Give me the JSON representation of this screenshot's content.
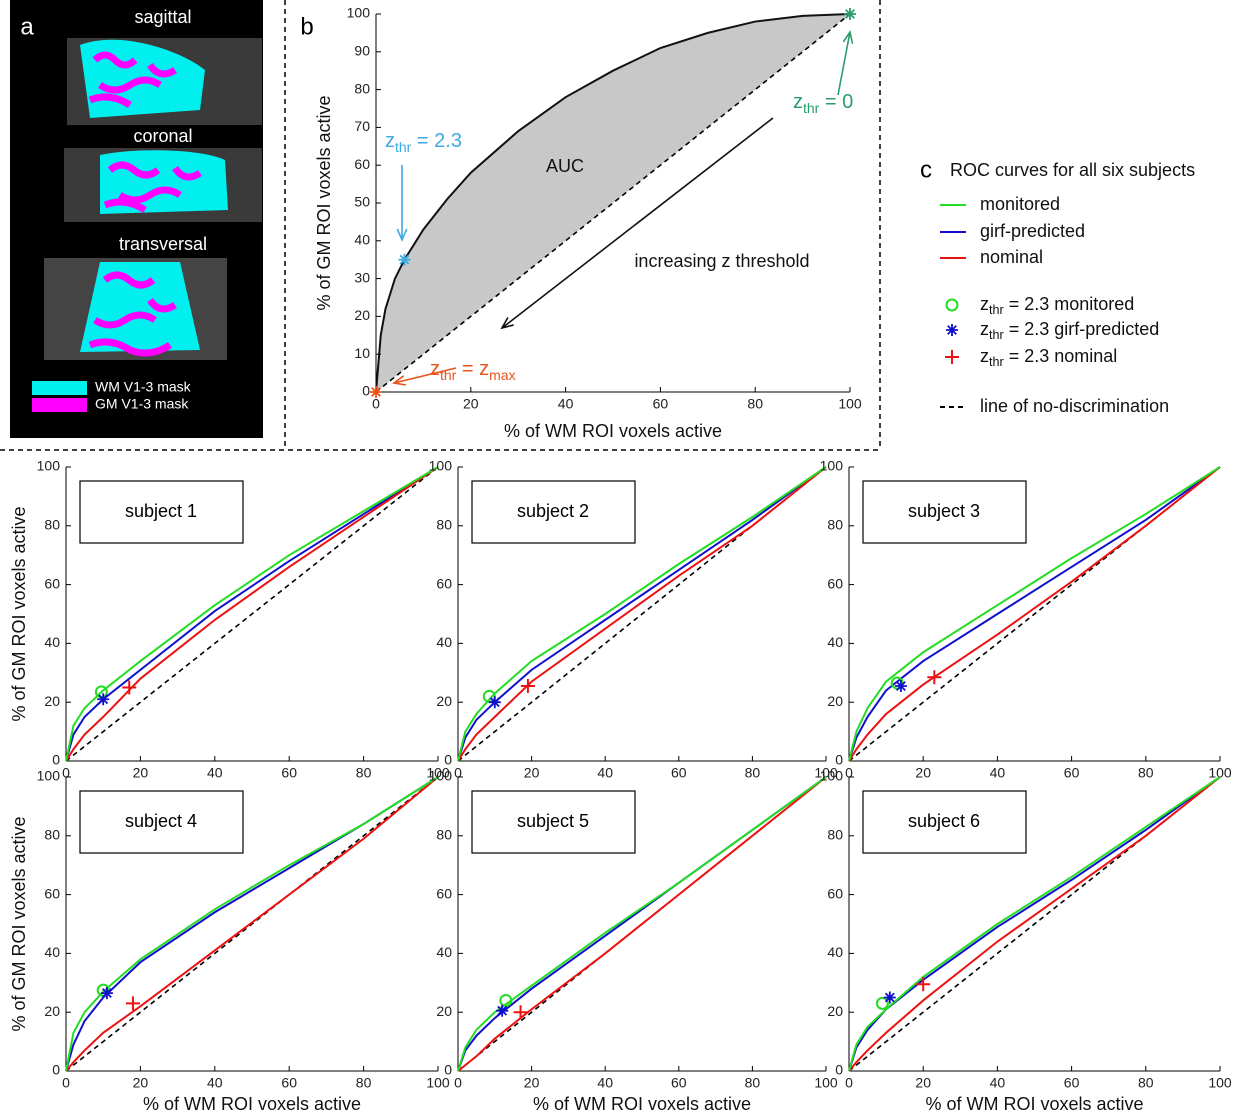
{
  "panel_a": {
    "label": "a",
    "views": [
      "sagittal",
      "coronal",
      "transversal"
    ],
    "legend": [
      {
        "name": "WM V1-3 mask",
        "color": "#00f0f0"
      },
      {
        "name": "GM V1-3 mask",
        "color": "#ff00ff"
      }
    ]
  },
  "panel_c": {
    "label": "c",
    "title": "ROC curves for all six subjects",
    "entries": [
      {
        "name": "monitored",
        "color": "#22dd22"
      },
      {
        "name": "girf-predicted",
        "color": "#1010cc"
      },
      {
        "name": "nominal",
        "color": "#ee1111"
      },
      {
        "parts": [
          "z",
          "thr",
          " = 2.3 monitored"
        ],
        "color": "#22dd22",
        "marker": "circle"
      },
      {
        "parts": [
          "z",
          "thr",
          " = 2.3 girf-predicted"
        ],
        "color": "#1010cc",
        "marker": "asterisk"
      },
      {
        "parts": [
          "z",
          "thr",
          " = 2.3 nominal"
        ],
        "color": "#ee1111",
        "marker": "plus"
      },
      {
        "name": "line of no-discrimination",
        "color": "#000000",
        "dash": true
      }
    ]
  },
  "chart_data": [
    {
      "type": "line",
      "label": "b",
      "xlabel": "% of WM ROI voxels active",
      "ylabel": "% of GM ROI voxels active",
      "xlim": [
        0,
        100
      ],
      "ylim": [
        0,
        100
      ],
      "xticks": [
        0,
        20,
        40,
        60,
        80,
        100
      ],
      "yticks": [
        0,
        10,
        20,
        30,
        40,
        50,
        60,
        70,
        80,
        90,
        100
      ],
      "area_color": "#c8c8c8",
      "x": [
        0,
        1,
        2,
        4,
        6,
        10,
        15,
        20,
        30,
        40,
        50,
        60,
        70,
        80,
        90,
        100
      ],
      "series": [
        {
          "color": "#111111",
          "values": [
            0,
            15,
            22,
            30,
            35,
            43,
            51,
            58,
            69,
            78,
            85,
            91,
            95,
            98,
            99.5,
            100
          ]
        }
      ],
      "points": [
        {
          "x": 6,
          "y": 35,
          "color": "#3fa9e0",
          "marker": "asterisk"
        },
        {
          "x": 100,
          "y": 100,
          "color": "#2a9d6a",
          "marker": "asterisk"
        },
        {
          "x": 0,
          "y": 0,
          "color": "#e8541c",
          "marker": "asterisk"
        }
      ],
      "annotations": [
        {
          "text": "AUC"
        },
        {
          "text": "increasing z threshold"
        },
        {
          "parts": [
            "z",
            "thr",
            " = 2.3"
          ],
          "color": "#3fa9e0"
        },
        {
          "parts": [
            "z",
            "thr",
            " = 0"
          ],
          "color": "#2a9d6a"
        },
        {
          "parts": [
            "z",
            "thr",
            " = z",
            "max"
          ],
          "color": "#e8541c"
        }
      ]
    },
    {
      "type": "line",
      "title": "subject 1",
      "ylabel": "% of GM ROI voxels active",
      "xlim": [
        0,
        100
      ],
      "ylim": [
        0,
        100
      ],
      "xticks": [
        0,
        20,
        40,
        60,
        80,
        100
      ],
      "yticks": [
        0,
        20,
        40,
        60,
        80,
        100
      ],
      "x": [
        0,
        2,
        5,
        10,
        20,
        40,
        60,
        80,
        100
      ],
      "series": [
        {
          "color": "#1010cc",
          "values": [
            0,
            9,
            15,
            21,
            31,
            51,
            68,
            84,
            100
          ]
        },
        {
          "color": "#ee1111",
          "values": [
            0,
            4,
            9,
            15,
            28,
            48,
            66,
            83,
            100
          ]
        },
        {
          "color": "#22dd22",
          "values": [
            0,
            12,
            18,
            24,
            34,
            53,
            70,
            85,
            100
          ]
        }
      ],
      "points": [
        {
          "x": 9.5,
          "y": 23.5,
          "color": "#22dd22",
          "marker": "circle"
        },
        {
          "x": 10,
          "y": 21,
          "color": "#1010cc",
          "marker": "asterisk"
        },
        {
          "x": 17,
          "y": 25,
          "color": "#ee1111",
          "marker": "plus"
        }
      ]
    },
    {
      "type": "line",
      "title": "subject 2",
      "xlim": [
        0,
        100
      ],
      "ylim": [
        0,
        100
      ],
      "xticks": [
        0,
        20,
        40,
        60,
        80,
        100
      ],
      "yticks": [
        0,
        20,
        40,
        60,
        80,
        100
      ],
      "x": [
        0,
        2,
        5,
        10,
        20,
        40,
        60,
        80,
        100
      ],
      "series": [
        {
          "color": "#1010cc",
          "values": [
            0,
            8,
            14,
            20,
            31,
            48,
            65,
            82,
            100
          ]
        },
        {
          "color": "#ee1111",
          "values": [
            0,
            4,
            9,
            15,
            27,
            45,
            63,
            80,
            100
          ]
        },
        {
          "color": "#22dd22",
          "values": [
            0,
            10,
            16,
            23,
            34,
            50,
            67,
            83,
            100
          ]
        }
      ],
      "points": [
        {
          "x": 8.5,
          "y": 22,
          "color": "#22dd22",
          "marker": "circle"
        },
        {
          "x": 10,
          "y": 20,
          "color": "#1010cc",
          "marker": "asterisk"
        },
        {
          "x": 19,
          "y": 25.5,
          "color": "#ee1111",
          "marker": "plus"
        }
      ]
    },
    {
      "type": "line",
      "title": "subject 3",
      "xlim": [
        0,
        100
      ],
      "ylim": [
        0,
        100
      ],
      "xticks": [
        0,
        20,
        40,
        60,
        80,
        100
      ],
      "yticks": [
        0,
        20,
        40,
        60,
        80,
        100
      ],
      "x": [
        0,
        2,
        5,
        10,
        20,
        40,
        60,
        80,
        100
      ],
      "series": [
        {
          "color": "#1010cc",
          "values": [
            0,
            8,
            15,
            24,
            34,
            50,
            66,
            82,
            100
          ]
        },
        {
          "color": "#ee1111",
          "values": [
            0,
            4,
            9,
            16,
            26,
            43,
            61,
            80,
            100
          ]
        },
        {
          "color": "#22dd22",
          "values": [
            0,
            10,
            18,
            27,
            37,
            53,
            69,
            84,
            100
          ]
        }
      ],
      "points": [
        {
          "x": 13,
          "y": 26.5,
          "color": "#22dd22",
          "marker": "circle"
        },
        {
          "x": 14,
          "y": 25.5,
          "color": "#1010cc",
          "marker": "asterisk"
        },
        {
          "x": 23,
          "y": 28.5,
          "color": "#ee1111",
          "marker": "plus"
        }
      ]
    },
    {
      "type": "line",
      "title": "subject 4",
      "xlabel": "% of WM ROI voxels active",
      "ylabel": "% of GM ROI voxels active",
      "xlim": [
        0,
        100
      ],
      "ylim": [
        0,
        100
      ],
      "xticks": [
        0,
        20,
        40,
        60,
        80,
        100
      ],
      "yticks": [
        0,
        20,
        40,
        60,
        80,
        100
      ],
      "x": [
        0,
        2,
        5,
        10,
        20,
        40,
        60,
        80,
        100
      ],
      "series": [
        {
          "color": "#1010cc",
          "values": [
            0,
            9,
            17,
            25,
            37,
            54,
            69,
            84,
            100
          ]
        },
        {
          "color": "#ee1111",
          "values": [
            0,
            3,
            7,
            13,
            22,
            41,
            60,
            79,
            100
          ]
        },
        {
          "color": "#22dd22",
          "values": [
            0,
            13,
            20,
            27,
            38,
            55,
            70,
            84,
            100
          ]
        }
      ],
      "points": [
        {
          "x": 10,
          "y": 27.5,
          "color": "#22dd22",
          "marker": "circle"
        },
        {
          "x": 11,
          "y": 26.5,
          "color": "#1010cc",
          "marker": "asterisk"
        },
        {
          "x": 18,
          "y": 23,
          "color": "#ee1111",
          "marker": "plus"
        }
      ]
    },
    {
      "type": "line",
      "title": "subject 5",
      "xlabel": "% of WM ROI voxels active",
      "xlim": [
        0,
        100
      ],
      "ylim": [
        0,
        100
      ],
      "xticks": [
        0,
        20,
        40,
        60,
        80,
        100
      ],
      "yticks": [
        0,
        20,
        40,
        60,
        80,
        100
      ],
      "x": [
        0,
        2,
        5,
        10,
        20,
        40,
        60,
        80,
        100
      ],
      "series": [
        {
          "color": "#1010cc",
          "values": [
            0,
            7,
            12,
            18,
            28,
            46,
            64,
            82,
            100
          ]
        },
        {
          "color": "#ee1111",
          "values": [
            0,
            2,
            5,
            11,
            21,
            40,
            60,
            80,
            100
          ]
        },
        {
          "color": "#22dd22",
          "values": [
            0,
            8,
            14,
            20,
            29,
            47,
            64,
            82,
            100
          ]
        }
      ],
      "points": [
        {
          "x": 13,
          "y": 24,
          "color": "#22dd22",
          "marker": "circle"
        },
        {
          "x": 12,
          "y": 20.5,
          "color": "#1010cc",
          "marker": "asterisk"
        },
        {
          "x": 17,
          "y": 20,
          "color": "#ee1111",
          "marker": "plus"
        }
      ]
    },
    {
      "type": "line",
      "title": "subject 6",
      "xlabel": "% of WM ROI voxels active",
      "xlim": [
        0,
        100
      ],
      "ylim": [
        0,
        100
      ],
      "xticks": [
        0,
        20,
        40,
        60,
        80,
        100
      ],
      "yticks": [
        0,
        20,
        40,
        60,
        80,
        100
      ],
      "x": [
        0,
        2,
        5,
        10,
        20,
        40,
        60,
        80,
        100
      ],
      "series": [
        {
          "color": "#1010cc",
          "values": [
            0,
            8,
            14,
            21,
            31,
            49,
            65,
            82,
            100
          ]
        },
        {
          "color": "#ee1111",
          "values": [
            0,
            3,
            7,
            13,
            24,
            44,
            62,
            80,
            100
          ]
        },
        {
          "color": "#22dd22",
          "values": [
            0,
            9,
            15,
            21,
            32,
            50,
            66,
            83,
            100
          ]
        }
      ],
      "points": [
        {
          "x": 9,
          "y": 23,
          "color": "#22dd22",
          "marker": "circle"
        },
        {
          "x": 11,
          "y": 25,
          "color": "#1010cc",
          "marker": "asterisk"
        },
        {
          "x": 20,
          "y": 29.5,
          "color": "#ee1111",
          "marker": "plus"
        }
      ]
    }
  ]
}
